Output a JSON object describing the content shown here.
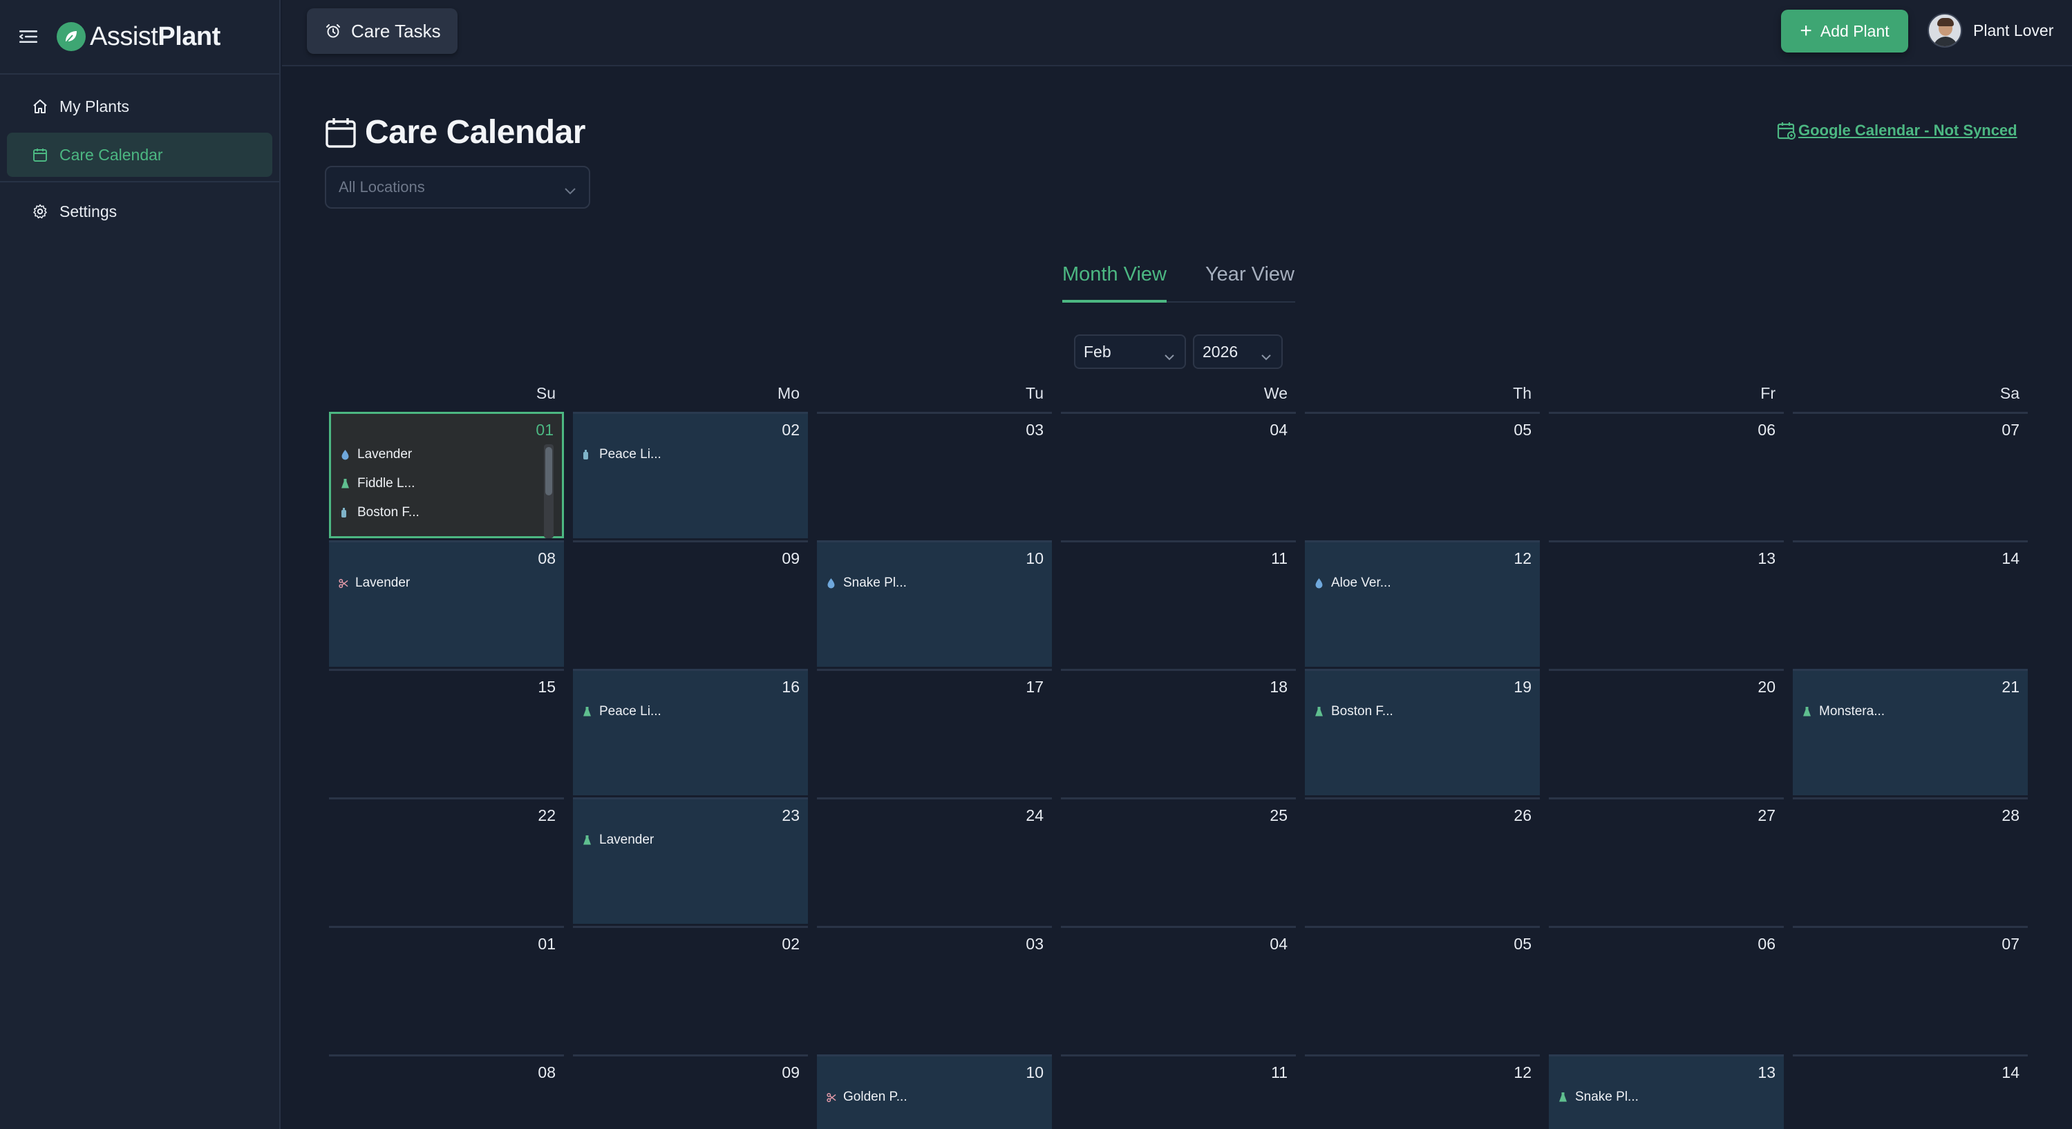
{
  "app": {
    "logo_left": "Assist",
    "logo_right": "Plant"
  },
  "sidebar": {
    "items": [
      {
        "label": "My Plants",
        "icon": "home-icon"
      },
      {
        "label": "Care Calendar",
        "icon": "calendar-icon",
        "active": true
      },
      {
        "label": "Settings",
        "icon": "gear-icon"
      }
    ]
  },
  "topbar": {
    "care_tasks_label": "Care Tasks",
    "add_plant_label": "Add Plant",
    "user_name": "Plant Lover"
  },
  "page": {
    "title": "Care Calendar",
    "google_calendar_link": "Google Calendar - Not Synced",
    "location_placeholder": "All Locations"
  },
  "view_tabs": {
    "month": "Month View",
    "year": "Year View",
    "active": "month"
  },
  "filters": {
    "month": "Feb",
    "year": "2026"
  },
  "colors": {
    "accent": "#4cb782",
    "water": "#6fa8dc",
    "fertilize": "#5fbf8f",
    "mist": "#7fb3c8",
    "prune": "#e39aa8"
  },
  "calendar": {
    "days_of_week": [
      "Su",
      "Mo",
      "Tu",
      "We",
      "Th",
      "Fr",
      "Sa"
    ],
    "weeks": [
      [
        {
          "day": "01",
          "today": true,
          "tasks": [
            {
              "icon": "water-drop-icon",
              "plant": "Lavender"
            },
            {
              "icon": "fertilizer-icon",
              "plant": "Fiddle L..."
            },
            {
              "icon": "mist-bottle-icon",
              "plant": "Boston F..."
            }
          ]
        },
        {
          "day": "02",
          "tasks": [
            {
              "icon": "mist-bottle-icon",
              "plant": "Peace Li..."
            }
          ]
        },
        {
          "day": "03",
          "tasks": []
        },
        {
          "day": "04",
          "tasks": []
        },
        {
          "day": "05",
          "tasks": []
        },
        {
          "day": "06",
          "tasks": []
        },
        {
          "day": "07",
          "tasks": []
        }
      ],
      [
        {
          "day": "08",
          "tasks": [
            {
              "icon": "scissors-icon",
              "plant": "Lavender"
            }
          ]
        },
        {
          "day": "09",
          "tasks": []
        },
        {
          "day": "10",
          "tasks": [
            {
              "icon": "water-drop-icon",
              "plant": "Snake Pl..."
            }
          ]
        },
        {
          "day": "11",
          "tasks": []
        },
        {
          "day": "12",
          "tasks": [
            {
              "icon": "water-drop-icon",
              "plant": "Aloe Ver..."
            }
          ]
        },
        {
          "day": "13",
          "tasks": []
        },
        {
          "day": "14",
          "tasks": []
        }
      ],
      [
        {
          "day": "15",
          "tasks": []
        },
        {
          "day": "16",
          "tasks": [
            {
              "icon": "fertilizer-icon",
              "plant": "Peace Li..."
            }
          ]
        },
        {
          "day": "17",
          "tasks": []
        },
        {
          "day": "18",
          "tasks": []
        },
        {
          "day": "19",
          "tasks": [
            {
              "icon": "fertilizer-icon",
              "plant": "Boston F..."
            }
          ]
        },
        {
          "day": "20",
          "tasks": []
        },
        {
          "day": "21",
          "tasks": [
            {
              "icon": "fertilizer-icon",
              "plant": "Monstera..."
            }
          ]
        }
      ],
      [
        {
          "day": "22",
          "tasks": []
        },
        {
          "day": "23",
          "tasks": [
            {
              "icon": "fertilizer-icon",
              "plant": "Lavender"
            }
          ]
        },
        {
          "day": "24",
          "tasks": []
        },
        {
          "day": "25",
          "tasks": []
        },
        {
          "day": "26",
          "tasks": []
        },
        {
          "day": "27",
          "tasks": []
        },
        {
          "day": "28",
          "tasks": []
        }
      ],
      [
        {
          "day": "01",
          "tasks": []
        },
        {
          "day": "02",
          "tasks": []
        },
        {
          "day": "03",
          "tasks": []
        },
        {
          "day": "04",
          "tasks": []
        },
        {
          "day": "05",
          "tasks": []
        },
        {
          "day": "06",
          "tasks": []
        },
        {
          "day": "07",
          "tasks": []
        }
      ],
      [
        {
          "day": "08",
          "tasks": []
        },
        {
          "day": "09",
          "tasks": []
        },
        {
          "day": "10",
          "tasks": [
            {
              "icon": "scissors-icon",
              "plant": "Golden P..."
            }
          ]
        },
        {
          "day": "11",
          "tasks": []
        },
        {
          "day": "12",
          "tasks": []
        },
        {
          "day": "13",
          "tasks": [
            {
              "icon": "fertilizer-icon",
              "plant": "Snake Pl..."
            }
          ]
        },
        {
          "day": "14",
          "tasks": []
        }
      ]
    ]
  }
}
